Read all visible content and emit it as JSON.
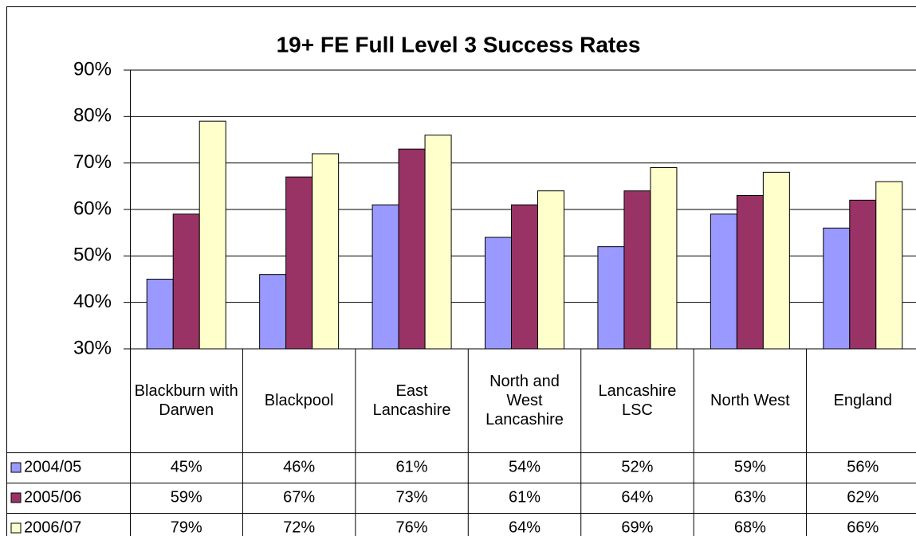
{
  "chart_data": {
    "type": "bar",
    "title": "19+ FE Full Level 3 Success Rates",
    "categories": [
      "Blackburn with Darwen",
      "Blackpool",
      "East Lancashire",
      "North and West Lancashire",
      "Lancashire LSC",
      "North West",
      "England"
    ],
    "series": [
      {
        "name": "2004/05",
        "color": "#9999ff",
        "values": [
          45,
          46,
          61,
          54,
          52,
          59,
          56
        ],
        "value_labels": [
          "45%",
          "46%",
          "61%",
          "54%",
          "52%",
          "59%",
          "56%"
        ]
      },
      {
        "name": "2005/06",
        "color": "#993366",
        "values": [
          59,
          67,
          73,
          61,
          64,
          63,
          62
        ],
        "value_labels": [
          "59%",
          "67%",
          "73%",
          "61%",
          "64%",
          "63%",
          "62%"
        ]
      },
      {
        "name": "2006/07",
        "color": "#ffffcc",
        "values": [
          79,
          72,
          76,
          64,
          69,
          68,
          66
        ],
        "value_labels": [
          "79%",
          "72%",
          "76%",
          "64%",
          "69%",
          "68%",
          "66%"
        ]
      }
    ],
    "ylim": [
      30,
      90
    ],
    "yticks": [
      {
        "value": 30,
        "label": "30%"
      },
      {
        "value": 40,
        "label": "40%"
      },
      {
        "value": 50,
        "label": "50%"
      },
      {
        "value": 60,
        "label": "60%"
      },
      {
        "value": 70,
        "label": "70%"
      },
      {
        "value": 80,
        "label": "80%"
      },
      {
        "value": 90,
        "label": "90%"
      }
    ],
    "grid": true
  }
}
